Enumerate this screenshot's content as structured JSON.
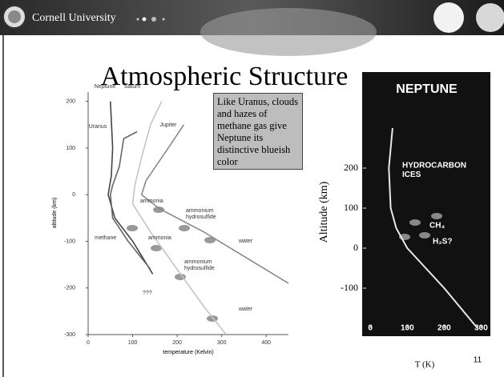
{
  "header": {
    "institution": "Cornell University"
  },
  "title": "Atmospheric Structure",
  "callout": "Like Uranus, clouds and hazes of methane gas give Neptune its distinctive blueish color",
  "slide_number": "11",
  "chart_data": [
    {
      "type": "line",
      "xlabel": "temperature (Kelvin)",
      "ylabel": "altitude (km)",
      "xlim": [
        0,
        450
      ],
      "ylim": [
        -300,
        220
      ],
      "xticks": [
        0,
        100,
        200,
        300,
        400
      ],
      "yticks": [
        -300,
        -200,
        -100,
        0,
        100,
        200
      ],
      "series": [
        {
          "name": "Neptune",
          "color": "#444444",
          "x": [
            50,
            55,
            52,
            45,
            60,
            100,
            145
          ],
          "values": [
            200,
            100,
            40,
            0,
            -50,
            -100,
            -170
          ]
        },
        {
          "name": "Uranus",
          "color": "#666666",
          "x": [
            110,
            80,
            70,
            55,
            50,
            55,
            90,
            140
          ],
          "values": [
            135,
            120,
            60,
            20,
            0,
            -50,
            -100,
            -160
          ]
        },
        {
          "name": "Saturn",
          "color": "#c4c4c4",
          "x": [
            165,
            140,
            120,
            105,
            100,
            140,
            200,
            260,
            310
          ],
          "values": [
            200,
            150,
            80,
            20,
            -20,
            -80,
            -160,
            -240,
            -300
          ]
        },
        {
          "name": "Jupiter",
          "color": "#8a8a8a",
          "x": [
            215,
            180,
            130,
            120,
            160,
            260,
            450
          ],
          "values": [
            150,
            100,
            30,
            0,
            -30,
            -80,
            -190
          ]
        }
      ],
      "annotations": [
        [
          "ammonia"
        ],
        [
          "ammonium",
          "hydrosulfide"
        ],
        [
          "water"
        ],
        [
          "methane"
        ],
        [
          "ammonia"
        ],
        [
          "ammonium",
          "hydrosulfide"
        ],
        [
          "water"
        ],
        [
          "???"
        ]
      ]
    },
    {
      "type": "line",
      "title": "NEPTUNE",
      "xlabel": "T (K)",
      "ylabel": "Altitude (km)",
      "xlim": [
        -20,
        325
      ],
      "ylim": [
        -200,
        320
      ],
      "xticks": [
        0,
        100,
        200,
        300
      ],
      "yticks": [
        -100,
        0,
        100,
        200
      ],
      "series": [
        {
          "color": "#e8e8e8",
          "x": [
            60,
            50,
            55,
            70,
            100,
            200,
            290
          ],
          "values": [
            300,
            200,
            100,
            50,
            0,
            -100,
            -200
          ]
        }
      ],
      "annotations": [
        [
          "HYDROCARBON",
          "ICES"
        ],
        [
          "CH₄"
        ],
        [
          "H₂S?"
        ]
      ]
    }
  ]
}
